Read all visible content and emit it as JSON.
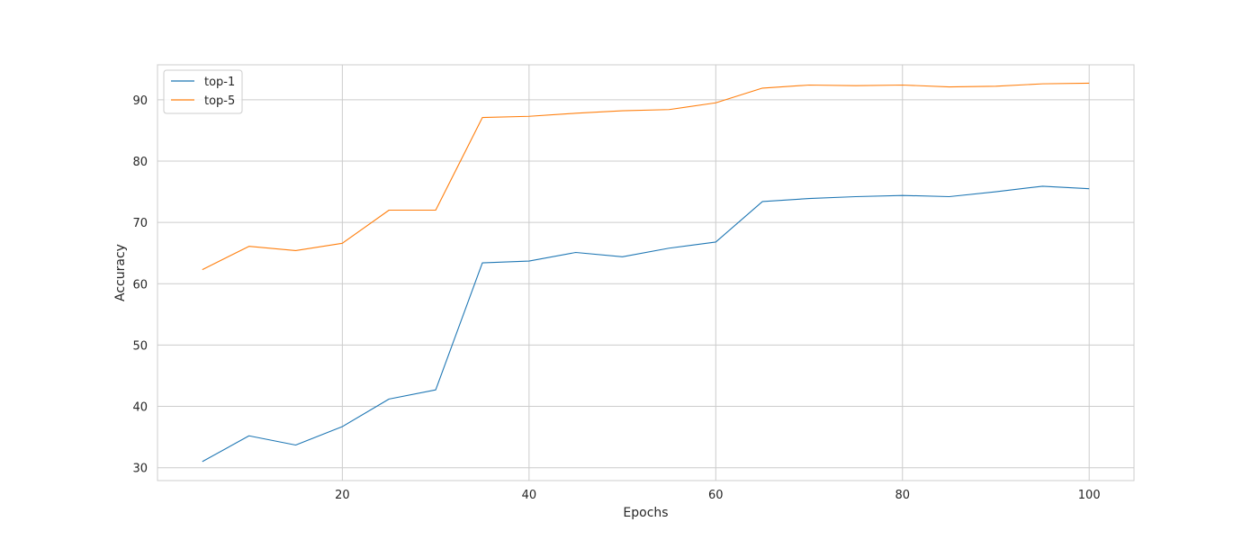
{
  "chart_data": {
    "type": "line",
    "title": "",
    "xlabel": "Epochs",
    "ylabel": "Accuracy",
    "xlim": [
      0.2,
      104.8
    ],
    "ylim": [
      27.9,
      95.7
    ],
    "xticks": [
      20,
      40,
      60,
      80,
      100
    ],
    "yticks": [
      30,
      40,
      50,
      60,
      70,
      80,
      90
    ],
    "grid": true,
    "legend_position": "top-left",
    "x": [
      5,
      10,
      15,
      20,
      25,
      30,
      35,
      40,
      45,
      50,
      55,
      60,
      65,
      70,
      75,
      80,
      85,
      90,
      95,
      100
    ],
    "series": [
      {
        "name": "top-1",
        "color": "#1f77b4",
        "values": [
          31.0,
          35.2,
          33.7,
          36.7,
          41.2,
          42.7,
          63.4,
          63.7,
          65.1,
          64.4,
          65.8,
          66.8,
          73.4,
          73.9,
          74.2,
          74.4,
          74.2,
          75.0,
          75.9,
          75.5
        ]
      },
      {
        "name": "top-5",
        "color": "#ff7f0e",
        "values": [
          62.3,
          66.1,
          65.4,
          66.6,
          72.0,
          72.0,
          87.1,
          87.3,
          87.8,
          88.2,
          88.4,
          89.5,
          91.9,
          92.4,
          92.3,
          92.4,
          92.1,
          92.2,
          92.6,
          92.7
        ]
      }
    ]
  }
}
